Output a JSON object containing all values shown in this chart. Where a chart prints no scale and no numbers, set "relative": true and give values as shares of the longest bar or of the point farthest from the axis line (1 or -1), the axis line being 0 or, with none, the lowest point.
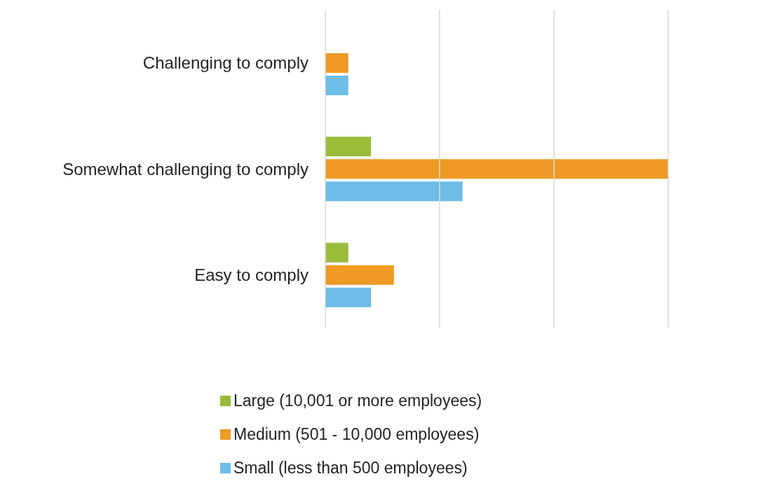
{
  "chart_data": {
    "type": "bar",
    "orientation": "horizontal",
    "relative": true,
    "legend": "bottom",
    "ref_lines": [
      {
        "axis": "x",
        "value": 0,
        "color": "#d9d9d9"
      },
      {
        "axis": "x",
        "value": 0.333,
        "color": "#d9d9d9"
      },
      {
        "axis": "x",
        "value": 0.667,
        "color": "#d9d9d9"
      },
      {
        "axis": "x",
        "value": 1,
        "color": "#d9d9d9"
      }
    ],
    "categories": [
      "Challenging to comply",
      "Somewhat challenging to comply",
      "Easy to comply"
    ],
    "series": [
      {
        "name": "Large (10,001 or more employees)",
        "color": "#9bbb3b",
        "values": [
          0,
          0.133,
          0.067
        ]
      },
      {
        "name": "Medium (501 - 10,000 employees)",
        "color": "#ee9a25",
        "values": [
          0.067,
          1,
          0.2
        ]
      },
      {
        "name": "Small (less than 500 employees)",
        "color": "#6dbde6",
        "values": [
          0.067,
          0.4,
          0.133
        ]
      }
    ]
  }
}
